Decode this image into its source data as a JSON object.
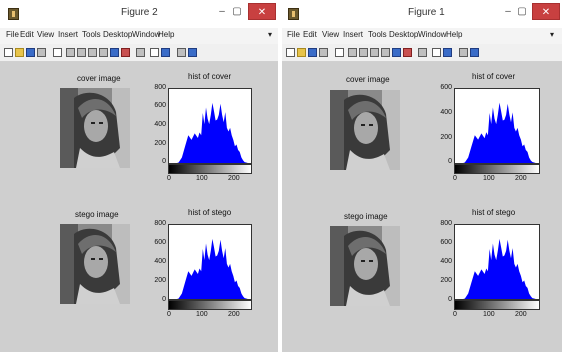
{
  "menu_labels": [
    "File",
    "Edit",
    "View",
    "Insert",
    "Tools",
    "Desktop",
    "Window",
    "Help"
  ],
  "windows": [
    {
      "title": "Figure 2",
      "controls": {
        "minimize": "–",
        "maximize": "▢",
        "close": "✕"
      },
      "menu_caret": "▾",
      "top": {
        "label": "cover image",
        "hist_title": "hist of cover",
        "yticks": [
          "800",
          "600",
          "400",
          "200",
          "0"
        ],
        "xticks": [
          "0",
          "100",
          "200"
        ]
      },
      "bottom": {
        "label": "stego image",
        "hist_title": "hist of stego",
        "yticks": [
          "800",
          "600",
          "400",
          "200",
          "0"
        ],
        "xticks": [
          "0",
          "100",
          "200"
        ]
      }
    },
    {
      "title": "Figure 1",
      "controls": {
        "minimize": "–",
        "maximize": "▢",
        "close": "✕"
      },
      "menu_caret": "▾",
      "top": {
        "label": "cover image",
        "hist_title": "hist of cover",
        "yticks": [
          "600",
          "400",
          "200",
          "0"
        ],
        "xticks": [
          "0",
          "100",
          "200"
        ]
      },
      "bottom": {
        "label": "stego image",
        "hist_title": "hist of stego",
        "yticks": [
          "800",
          "600",
          "400",
          "200",
          "0"
        ],
        "xticks": [
          "0",
          "100",
          "200"
        ]
      }
    }
  ],
  "chart_data": [
    {
      "type": "area",
      "title": "hist of cover",
      "ylim": [
        0,
        800
      ],
      "xlim": [
        0,
        255
      ],
      "x": [
        0,
        25,
        30,
        40,
        50,
        60,
        70,
        80,
        90,
        95,
        100,
        105,
        110,
        115,
        120,
        125,
        130,
        135,
        140,
        145,
        150,
        155,
        160,
        165,
        170,
        175,
        180,
        185,
        190,
        195,
        200,
        205,
        210,
        215,
        220,
        225,
        230,
        235,
        240,
        245,
        255
      ],
      "y": [
        0,
        0,
        5,
        60,
        180,
        300,
        250,
        320,
        270,
        330,
        300,
        540,
        420,
        600,
        480,
        420,
        520,
        650,
        560,
        460,
        470,
        520,
        640,
        520,
        440,
        550,
        380,
        340,
        380,
        300,
        250,
        180,
        200,
        140,
        120,
        60,
        30,
        10,
        5,
        0,
        0
      ],
      "color": "#0000ff"
    },
    {
      "type": "area",
      "title": "hist of stego",
      "ylim": [
        0,
        800
      ],
      "xlim": [
        0,
        255
      ],
      "x": [
        0,
        25,
        30,
        40,
        50,
        60,
        70,
        80,
        90,
        95,
        100,
        105,
        110,
        115,
        120,
        125,
        130,
        135,
        140,
        145,
        150,
        155,
        160,
        165,
        170,
        175,
        180,
        185,
        190,
        195,
        200,
        205,
        210,
        215,
        220,
        225,
        230,
        235,
        240,
        245,
        255
      ],
      "y": [
        0,
        0,
        5,
        60,
        180,
        300,
        250,
        320,
        270,
        330,
        300,
        540,
        420,
        600,
        480,
        420,
        520,
        650,
        560,
        460,
        470,
        520,
        640,
        520,
        440,
        550,
        380,
        340,
        380,
        300,
        250,
        180,
        200,
        140,
        120,
        60,
        30,
        10,
        5,
        0,
        0
      ],
      "color": "#0000ff"
    },
    {
      "type": "area",
      "title": "hist of cover",
      "ylim": [
        0,
        600
      ],
      "xlim": [
        0,
        255
      ],
      "x": [
        0,
        25,
        30,
        40,
        50,
        60,
        70,
        80,
        90,
        95,
        100,
        105,
        110,
        115,
        120,
        125,
        130,
        135,
        140,
        145,
        150,
        155,
        160,
        165,
        170,
        175,
        180,
        185,
        190,
        195,
        200,
        205,
        210,
        215,
        220,
        225,
        230,
        235,
        240,
        245,
        255
      ],
      "y": [
        0,
        0,
        5,
        45,
        135,
        225,
        190,
        240,
        200,
        250,
        225,
        405,
        315,
        450,
        360,
        315,
        390,
        490,
        420,
        345,
        350,
        390,
        480,
        390,
        330,
        410,
        285,
        255,
        285,
        225,
        190,
        135,
        150,
        105,
        90,
        45,
        20,
        8,
        4,
        0,
        0
      ],
      "color": "#0000ff"
    },
    {
      "type": "area",
      "title": "hist of stego",
      "ylim": [
        0,
        800
      ],
      "xlim": [
        0,
        255
      ],
      "x": [
        0,
        25,
        30,
        40,
        50,
        60,
        70,
        80,
        90,
        95,
        100,
        105,
        110,
        115,
        120,
        125,
        130,
        135,
        140,
        145,
        150,
        155,
        160,
        165,
        170,
        175,
        180,
        185,
        190,
        195,
        200,
        205,
        210,
        215,
        220,
        225,
        230,
        235,
        240,
        245,
        255
      ],
      "y": [
        0,
        0,
        5,
        60,
        180,
        300,
        250,
        320,
        270,
        330,
        300,
        540,
        420,
        600,
        480,
        420,
        520,
        650,
        560,
        460,
        470,
        520,
        640,
        520,
        440,
        550,
        380,
        340,
        380,
        300,
        250,
        180,
        200,
        140,
        120,
        60,
        30,
        10,
        5,
        0,
        0
      ],
      "color": "#0000ff"
    }
  ]
}
